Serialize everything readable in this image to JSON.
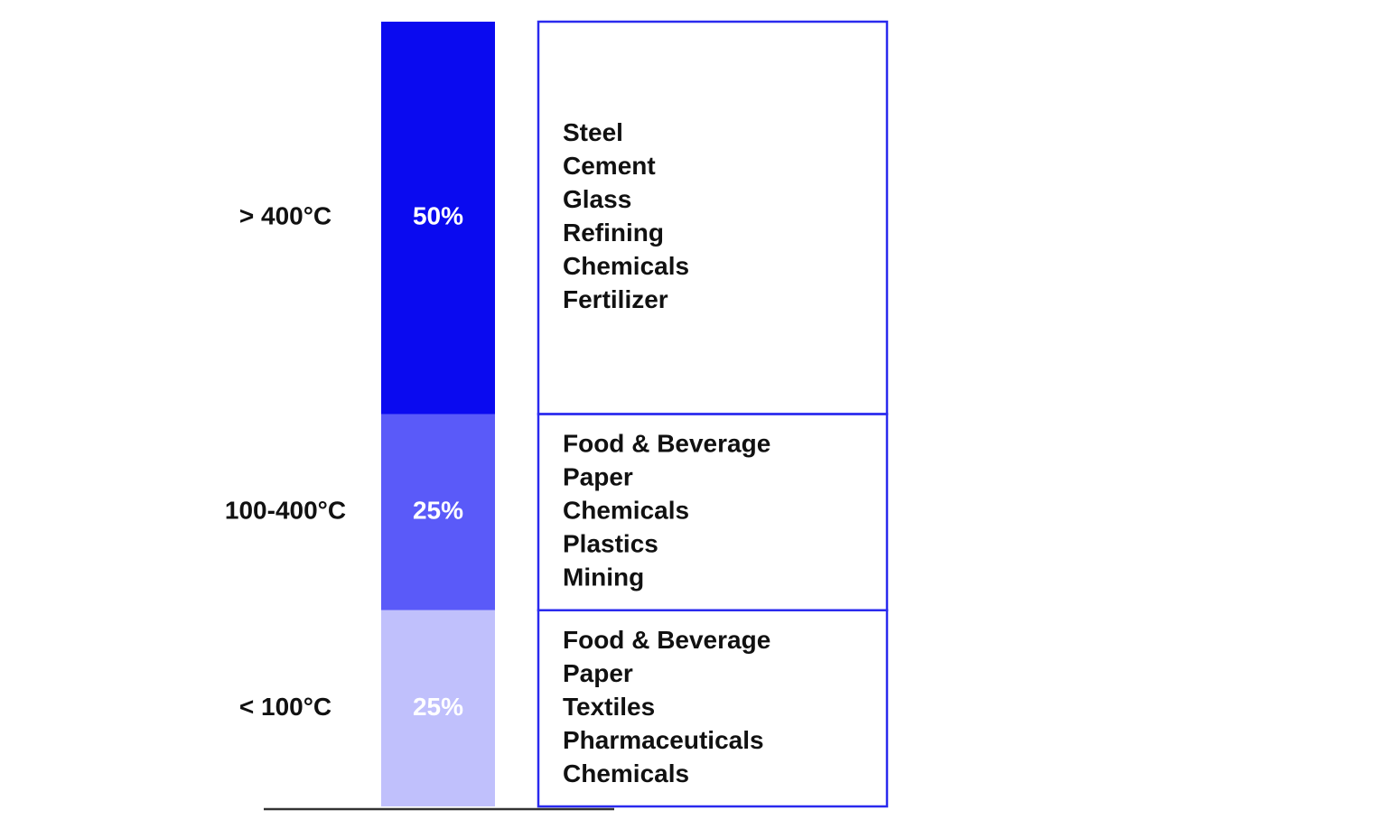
{
  "chart_data": {
    "type": "stacked-bar",
    "categories": [
      "> 400°C",
      "100-400°C",
      "< 100°C"
    ],
    "values": [
      50,
      25,
      25
    ],
    "value_labels": [
      "50%",
      "25%",
      "25%"
    ],
    "colors": [
      "#0a0af0",
      "#5a5af9",
      "#c0c0fc"
    ],
    "industries": [
      [
        "Steel",
        "Cement",
        "Glass",
        "Refining",
        "Chemicals",
        "Fertilizer"
      ],
      [
        "Food & Beverage",
        "Paper",
        "Chemicals",
        "Plastics",
        "Mining"
      ],
      [
        "Food & Beverage",
        "Paper",
        "Textiles",
        "Pharmaceuticals",
        "Chemicals"
      ]
    ]
  }
}
